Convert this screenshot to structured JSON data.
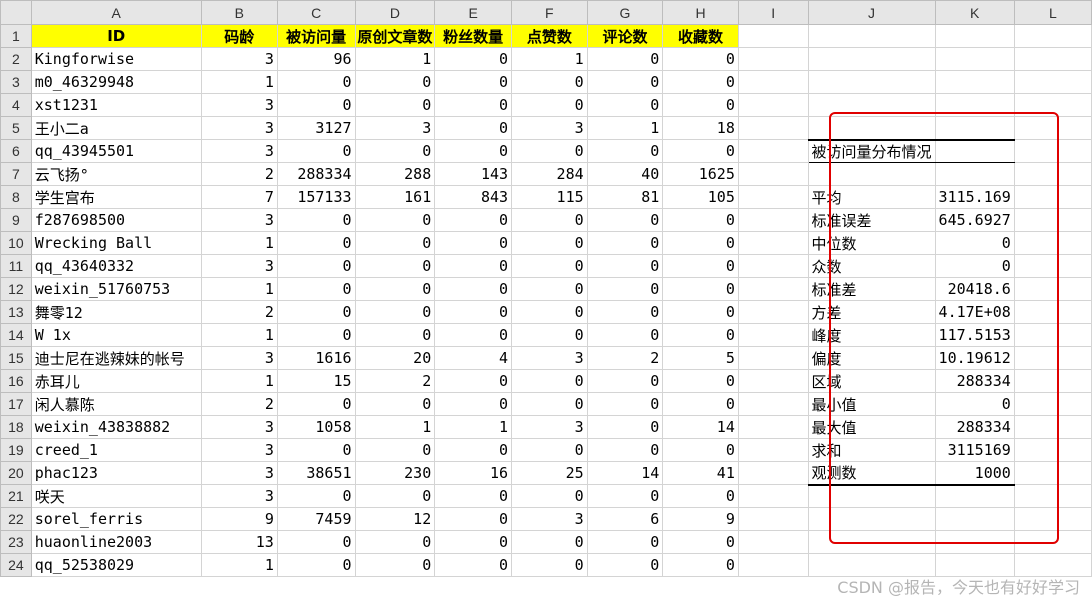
{
  "columns": [
    "A",
    "B",
    "C",
    "D",
    "E",
    "F",
    "G",
    "H",
    "I",
    "J",
    "K",
    "L"
  ],
  "header_row": [
    "ID",
    "码龄",
    "被访问量",
    "原创文章数",
    "粉丝数量",
    "点赞数",
    "评论数",
    "收藏数"
  ],
  "rows": [
    {
      "id": "Kingforwise",
      "vals": [
        3,
        96,
        1,
        0,
        1,
        0,
        0
      ]
    },
    {
      "id": "m0_46329948",
      "vals": [
        1,
        0,
        0,
        0,
        0,
        0,
        0
      ]
    },
    {
      "id": "xst1231",
      "vals": [
        3,
        0,
        0,
        0,
        0,
        0,
        0
      ]
    },
    {
      "id": "王小二a",
      "vals": [
        3,
        3127,
        3,
        0,
        3,
        1,
        18
      ]
    },
    {
      "id": "qq_43945501",
      "vals": [
        3,
        0,
        0,
        0,
        0,
        0,
        0
      ]
    },
    {
      "id": "云飞扬°",
      "vals": [
        2,
        288334,
        288,
        143,
        284,
        40,
        1625
      ]
    },
    {
      "id": "学生宫布",
      "vals": [
        7,
        157133,
        161,
        843,
        115,
        81,
        105
      ]
    },
    {
      "id": "f287698500",
      "vals": [
        3,
        0,
        0,
        0,
        0,
        0,
        0
      ]
    },
    {
      "id": "Wrecking Ball",
      "vals": [
        1,
        0,
        0,
        0,
        0,
        0,
        0
      ]
    },
    {
      "id": "qq_43640332",
      "vals": [
        3,
        0,
        0,
        0,
        0,
        0,
        0
      ]
    },
    {
      "id": "weixin_51760753",
      "vals": [
        1,
        0,
        0,
        0,
        0,
        0,
        0
      ]
    },
    {
      "id": "舞零12",
      "vals": [
        2,
        0,
        0,
        0,
        0,
        0,
        0
      ]
    },
    {
      "id": "W 1x",
      "vals": [
        1,
        0,
        0,
        0,
        0,
        0,
        0
      ]
    },
    {
      "id": "迪士尼在逃辣妹的帐号",
      "vals": [
        3,
        1616,
        20,
        4,
        3,
        2,
        5
      ]
    },
    {
      "id": "赤耳儿",
      "vals": [
        1,
        15,
        2,
        0,
        0,
        0,
        0
      ]
    },
    {
      "id": "闲人慕陈",
      "vals": [
        2,
        0,
        0,
        0,
        0,
        0,
        0
      ]
    },
    {
      "id": "weixin_43838882",
      "vals": [
        3,
        1058,
        1,
        1,
        3,
        0,
        14
      ]
    },
    {
      "id": "creed_1",
      "vals": [
        3,
        0,
        0,
        0,
        0,
        0,
        0
      ]
    },
    {
      "id": "phac123",
      "vals": [
        3,
        38651,
        230,
        16,
        25,
        14,
        41
      ]
    },
    {
      "id": "咲天",
      "vals": [
        3,
        0,
        0,
        0,
        0,
        0,
        0
      ]
    },
    {
      "id": "sorel_ferris",
      "vals": [
        9,
        7459,
        12,
        0,
        3,
        6,
        9
      ]
    },
    {
      "id": "huaonline2003",
      "vals": [
        13,
        0,
        0,
        0,
        0,
        0,
        0
      ]
    },
    {
      "id": "qq_52538029",
      "vals": [
        1,
        0,
        0,
        0,
        0,
        0,
        0
      ]
    }
  ],
  "stats": {
    "title": "被访问量分布情况",
    "items": [
      {
        "label": "平均",
        "value": "3115.169"
      },
      {
        "label": "标准误差",
        "value": "645.6927"
      },
      {
        "label": "中位数",
        "value": "0"
      },
      {
        "label": "众数",
        "value": "0"
      },
      {
        "label": "标准差",
        "value": "20418.6"
      },
      {
        "label": "方差",
        "value": "4.17E+08"
      },
      {
        "label": "峰度",
        "value": "117.5153"
      },
      {
        "label": "偏度",
        "value": "10.19612"
      },
      {
        "label": "区域",
        "value": "288334"
      },
      {
        "label": "最小值",
        "value": "0"
      },
      {
        "label": "最大值",
        "value": "288334"
      },
      {
        "label": "求和",
        "value": "3115169"
      },
      {
        "label": "观测数",
        "value": "1000"
      }
    ]
  },
  "watermark": "CSDN @报告，今天也有好好学习",
  "colors": {
    "header_fill": "#ffff00",
    "highlight_border": "#e00000",
    "grid": "#d4d4d4",
    "row_col_header_bg": "#e6e6e6"
  }
}
